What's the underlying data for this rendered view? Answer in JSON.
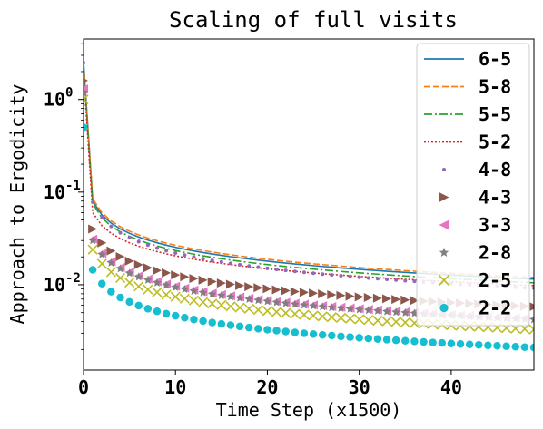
{
  "chart_data": {
    "type": "line",
    "title": "Scaling of full visits",
    "xlabel": "Time Step (x1500)",
    "ylabel": "Approach to Ergodicity",
    "xlim": [
      0,
      49
    ],
    "ylim": [
      0.0012,
      4.5
    ],
    "yscale": "log",
    "grid": false,
    "legend": "top-right",
    "x_ticks": [
      0,
      10,
      20,
      30,
      40
    ],
    "y_ticks": [
      {
        "value": 1,
        "label": "10",
        "exp": "0"
      },
      {
        "value": 0.1,
        "label": "10",
        "exp": "-1"
      },
      {
        "value": 0.01,
        "label": "10",
        "exp": "-2"
      }
    ],
    "series": [
      {
        "name": "6-5",
        "color": "#1f77b4",
        "style": "solid",
        "y0": 2.6,
        "y1": 0.08,
        "y49": 0.0115
      },
      {
        "name": "5-8",
        "color": "#ff7f0e",
        "style": "dashed",
        "y0": 2.4,
        "y1": 0.085,
        "y49": 0.012
      },
      {
        "name": "5-5",
        "color": "#2ca02c",
        "style": "dashdot",
        "y0": 2.2,
        "y1": 0.075,
        "y49": 0.0105
      },
      {
        "name": "5-2",
        "color": "#d62728",
        "style": "dotted",
        "y0": 2.0,
        "y1": 0.06,
        "y49": 0.0098
      },
      {
        "name": "4-8",
        "color": "#9467bd",
        "marker": "dot",
        "y0": 2.5,
        "y1": 0.078,
        "y49": 0.0092
      },
      {
        "name": "4-3",
        "color": "#8c564b",
        "marker": "triangle-right",
        "y0": 1.6,
        "y1": 0.04,
        "y49": 0.0058
      },
      {
        "name": "3-3",
        "color": "#e377c2",
        "marker": "triangle-left",
        "y0": 1.3,
        "y1": 0.031,
        "y49": 0.0043
      },
      {
        "name": "2-8",
        "color": "#7f7f7f",
        "marker": "star",
        "y0": 1.2,
        "y1": 0.03,
        "y49": 0.0042
      },
      {
        "name": "2-5",
        "color": "#bcbd22",
        "marker": "x",
        "y0": 1.0,
        "y1": 0.024,
        "y49": 0.0033
      },
      {
        "name": "2-2",
        "color": "#17becf",
        "marker": "circle",
        "y0": 0.5,
        "y1": 0.0145,
        "y49": 0.0021
      }
    ]
  }
}
